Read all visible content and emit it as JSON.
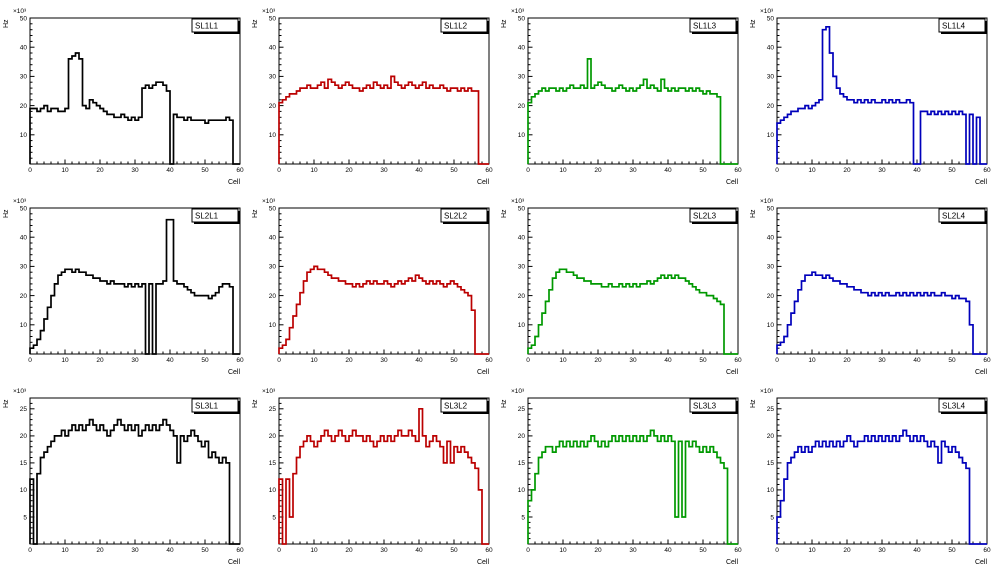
{
  "page": {
    "background": "#ffffff"
  },
  "axis_common": {
    "x_label": "Cell",
    "y_label": "Hz",
    "y_exponent": "×10³"
  },
  "chart_data": [
    {
      "type": "line",
      "style": "step-histogram",
      "title": "SL1L1",
      "color": "#000000",
      "xlabel": "Cell",
      "ylabel": "Hz",
      "y_multiplier": "×10³",
      "xlim": [
        0,
        60
      ],
      "ylim": [
        0,
        50
      ],
      "xticks": [
        0,
        10,
        20,
        30,
        40,
        50,
        60
      ],
      "yticks": [
        10,
        20,
        30,
        40,
        50
      ],
      "values": [
        19,
        19,
        18,
        19,
        20,
        18,
        19,
        19,
        18,
        18,
        19,
        36,
        37,
        38,
        36,
        20,
        19,
        22,
        21,
        20,
        19,
        18,
        17,
        17,
        16,
        16,
        17,
        16,
        15,
        16,
        15,
        16,
        26,
        27,
        26,
        27,
        28,
        28,
        27,
        25,
        0,
        17,
        16,
        16,
        15,
        16,
        15,
        15,
        15,
        15,
        14,
        15,
        15,
        15,
        15,
        15,
        16,
        15,
        0,
        0
      ]
    },
    {
      "type": "line",
      "style": "step-histogram",
      "title": "SL1L2",
      "color": "#bb0000",
      "xlabel": "Cell",
      "ylabel": "Hz",
      "y_multiplier": "×10³",
      "xlim": [
        0,
        60
      ],
      "ylim": [
        0,
        50
      ],
      "xticks": [
        0,
        10,
        20,
        30,
        40,
        50,
        60
      ],
      "yticks": [
        10,
        20,
        30,
        40,
        50
      ],
      "values": [
        21,
        22,
        23,
        24,
        24,
        25,
        26,
        26,
        27,
        26,
        26,
        27,
        28,
        26,
        29,
        28,
        27,
        26,
        27,
        28,
        27,
        26,
        26,
        25,
        26,
        27,
        26,
        28,
        27,
        26,
        27,
        26,
        30,
        28,
        27,
        26,
        27,
        28,
        27,
        26,
        27,
        28,
        26,
        27,
        26,
        26,
        27,
        26,
        25,
        26,
        26,
        25,
        26,
        25,
        26,
        25,
        25,
        0,
        0,
        0
      ]
    },
    {
      "type": "line",
      "style": "step-histogram",
      "title": "SL1L3",
      "color": "#009900",
      "xlabel": "Cell",
      "ylabel": "Hz",
      "y_multiplier": "×10³",
      "xlim": [
        0,
        60
      ],
      "ylim": [
        0,
        50
      ],
      "xticks": [
        0,
        10,
        20,
        30,
        40,
        50,
        60
      ],
      "yticks": [
        10,
        20,
        30,
        40,
        50
      ],
      "values": [
        21,
        23,
        24,
        25,
        26,
        25,
        26,
        26,
        25,
        26,
        25,
        26,
        27,
        26,
        26,
        27,
        26,
        36,
        26,
        27,
        28,
        27,
        26,
        26,
        25,
        26,
        27,
        26,
        25,
        26,
        25,
        26,
        27,
        29,
        26,
        27,
        26,
        25,
        29,
        26,
        25,
        26,
        25,
        26,
        26,
        25,
        26,
        25,
        26,
        25,
        24,
        25,
        24,
        24,
        23,
        0,
        0,
        0,
        0,
        0
      ]
    },
    {
      "type": "line",
      "style": "step-histogram",
      "title": "SL1L4",
      "color": "#0000bb",
      "xlabel": "Cell",
      "ylabel": "Hz",
      "y_multiplier": "×10³",
      "xlim": [
        0,
        60
      ],
      "ylim": [
        0,
        50
      ],
      "xticks": [
        0,
        10,
        20,
        30,
        40,
        50,
        60
      ],
      "yticks": [
        10,
        20,
        30,
        40,
        50
      ],
      "values": [
        14,
        15,
        16,
        17,
        18,
        18,
        19,
        19,
        20,
        19,
        20,
        21,
        22,
        46,
        47,
        38,
        30,
        26,
        24,
        23,
        22,
        22,
        21,
        22,
        21,
        22,
        21,
        22,
        21,
        21,
        22,
        21,
        22,
        21,
        22,
        21,
        21,
        22,
        21,
        0,
        0,
        18,
        18,
        17,
        18,
        17,
        18,
        17,
        18,
        17,
        18,
        17,
        18,
        17,
        0,
        17,
        0,
        16,
        0,
        0
      ]
    },
    {
      "type": "line",
      "style": "step-histogram",
      "title": "SL2L1",
      "color": "#000000",
      "xlabel": "Cell",
      "ylabel": "Hz",
      "y_multiplier": "×10³",
      "xlim": [
        0,
        60
      ],
      "ylim": [
        0,
        50
      ],
      "xticks": [
        0,
        10,
        20,
        30,
        40,
        50,
        60
      ],
      "yticks": [
        10,
        20,
        30,
        40,
        50
      ],
      "values": [
        2,
        3,
        5,
        8,
        12,
        16,
        20,
        24,
        27,
        28,
        29,
        29,
        28,
        29,
        28,
        28,
        27,
        27,
        26,
        26,
        25,
        25,
        24,
        25,
        24,
        24,
        24,
        23,
        24,
        23,
        24,
        23,
        24,
        0,
        24,
        0,
        24,
        24,
        25,
        46,
        46,
        25,
        24,
        24,
        23,
        22,
        21,
        20,
        20,
        20,
        20,
        19,
        20,
        21,
        23,
        24,
        24,
        23,
        0,
        0
      ]
    },
    {
      "type": "line",
      "style": "step-histogram",
      "title": "SL2L2",
      "color": "#bb0000",
      "xlabel": "Cell",
      "ylabel": "Hz",
      "y_multiplier": "×10³",
      "xlim": [
        0,
        60
      ],
      "ylim": [
        0,
        50
      ],
      "xticks": [
        0,
        10,
        20,
        30,
        40,
        50,
        60
      ],
      "yticks": [
        10,
        20,
        30,
        40,
        50
      ],
      "values": [
        2,
        3,
        5,
        9,
        13,
        17,
        21,
        25,
        28,
        29,
        30,
        29,
        29,
        28,
        27,
        26,
        26,
        25,
        25,
        24,
        24,
        23,
        24,
        23,
        24,
        25,
        24,
        25,
        24,
        24,
        25,
        24,
        23,
        24,
        25,
        24,
        25,
        26,
        25,
        27,
        26,
        25,
        24,
        25,
        24,
        25,
        24,
        23,
        24,
        25,
        24,
        23,
        22,
        21,
        20,
        15,
        0,
        0,
        0,
        0
      ]
    },
    {
      "type": "line",
      "style": "step-histogram",
      "title": "SL2L3",
      "color": "#009900",
      "xlabel": "Cell",
      "ylabel": "Hz",
      "y_multiplier": "×10³",
      "xlim": [
        0,
        60
      ],
      "ylim": [
        0,
        50
      ],
      "xticks": [
        0,
        10,
        20,
        30,
        40,
        50,
        60
      ],
      "yticks": [
        10,
        20,
        30,
        40,
        50
      ],
      "values": [
        2,
        3,
        6,
        10,
        14,
        18,
        22,
        26,
        28,
        29,
        29,
        28,
        28,
        27,
        26,
        26,
        25,
        25,
        24,
        24,
        24,
        23,
        23,
        24,
        23,
        23,
        24,
        23,
        24,
        23,
        24,
        23,
        24,
        24,
        25,
        24,
        25,
        26,
        27,
        26,
        27,
        26,
        27,
        26,
        26,
        25,
        24,
        23,
        22,
        21,
        21,
        20,
        20,
        19,
        18,
        17,
        0,
        0,
        0,
        0
      ]
    },
    {
      "type": "line",
      "style": "step-histogram",
      "title": "SL2L4",
      "color": "#0000bb",
      "xlabel": "Cell",
      "ylabel": "Hz",
      "y_multiplier": "×10³",
      "xlim": [
        0,
        60
      ],
      "ylim": [
        0,
        50
      ],
      "xticks": [
        0,
        10,
        20,
        30,
        40,
        50,
        60
      ],
      "yticks": [
        10,
        20,
        30,
        40,
        50
      ],
      "values": [
        3,
        4,
        6,
        10,
        14,
        18,
        22,
        25,
        27,
        27,
        28,
        27,
        27,
        26,
        27,
        26,
        25,
        25,
        24,
        24,
        23,
        23,
        22,
        22,
        21,
        21,
        20,
        21,
        20,
        21,
        20,
        21,
        20,
        20,
        21,
        20,
        21,
        20,
        21,
        20,
        21,
        20,
        21,
        20,
        21,
        20,
        20,
        21,
        20,
        20,
        19,
        20,
        19,
        19,
        18,
        10,
        0,
        0,
        0,
        0
      ]
    },
    {
      "type": "line",
      "style": "step-histogram",
      "title": "SL3L1",
      "color": "#000000",
      "xlabel": "Cell",
      "ylabel": "Hz",
      "y_multiplier": "×10³",
      "xlim": [
        0,
        60
      ],
      "ylim": [
        0,
        27
      ],
      "xticks": [
        0,
        10,
        20,
        30,
        40,
        50,
        60
      ],
      "yticks": [
        5,
        10,
        15,
        20,
        25
      ],
      "values": [
        12,
        0,
        13,
        16,
        17,
        18,
        19,
        20,
        20,
        21,
        20,
        21,
        22,
        21,
        22,
        21,
        22,
        23,
        22,
        21,
        22,
        21,
        20,
        21,
        22,
        23,
        22,
        21,
        22,
        21,
        22,
        20,
        21,
        22,
        21,
        22,
        21,
        22,
        23,
        22,
        21,
        20,
        15,
        20,
        19,
        20,
        21,
        20,
        19,
        18,
        19,
        16,
        17,
        16,
        15,
        16,
        15,
        0,
        0,
        0
      ]
    },
    {
      "type": "line",
      "style": "step-histogram",
      "title": "SL3L2",
      "color": "#bb0000",
      "xlabel": "Cell",
      "ylabel": "Hz",
      "y_multiplier": "×10³",
      "xlim": [
        0,
        60
      ],
      "ylim": [
        0,
        27
      ],
      "xticks": [
        0,
        10,
        20,
        30,
        40,
        50,
        60
      ],
      "yticks": [
        5,
        10,
        15,
        20,
        25
      ],
      "values": [
        12,
        0,
        12,
        5,
        13,
        16,
        18,
        19,
        20,
        19,
        18,
        19,
        20,
        21,
        20,
        19,
        20,
        21,
        20,
        19,
        20,
        21,
        20,
        20,
        19,
        20,
        19,
        18,
        19,
        20,
        19,
        20,
        19,
        20,
        21,
        20,
        20,
        21,
        20,
        19,
        25,
        20,
        18,
        19,
        20,
        19,
        18,
        15,
        19,
        15,
        18,
        17,
        18,
        17,
        16,
        15,
        14,
        10,
        0,
        0
      ]
    },
    {
      "type": "line",
      "style": "step-histogram",
      "title": "SL3L3",
      "color": "#009900",
      "xlabel": "Cell",
      "ylabel": "Hz",
      "y_multiplier": "×10³",
      "xlim": [
        0,
        60
      ],
      "ylim": [
        0,
        27
      ],
      "xticks": [
        0,
        10,
        20,
        30,
        40,
        50,
        60
      ],
      "yticks": [
        5,
        10,
        15,
        20,
        25
      ],
      "values": [
        8,
        10,
        13,
        16,
        17,
        18,
        18,
        17,
        18,
        19,
        18,
        19,
        18,
        19,
        18,
        19,
        18,
        19,
        20,
        19,
        18,
        19,
        18,
        19,
        20,
        19,
        20,
        19,
        20,
        19,
        20,
        19,
        20,
        19,
        20,
        21,
        20,
        19,
        20,
        19,
        20,
        19,
        5,
        19,
        5,
        19,
        18,
        19,
        18,
        17,
        18,
        17,
        18,
        17,
        16,
        15,
        14,
        0,
        0,
        0
      ]
    },
    {
      "type": "line",
      "style": "step-histogram",
      "title": "SL3L4",
      "color": "#0000bb",
      "xlabel": "Cell",
      "ylabel": "Hz",
      "y_multiplier": "×10³",
      "xlim": [
        0,
        60
      ],
      "ylim": [
        0,
        27
      ],
      "xticks": [
        0,
        10,
        20,
        30,
        40,
        50,
        60
      ],
      "yticks": [
        5,
        10,
        15,
        20,
        25
      ],
      "values": [
        5,
        8,
        12,
        15,
        16,
        17,
        18,
        17,
        18,
        17,
        18,
        19,
        18,
        19,
        18,
        19,
        18,
        19,
        18,
        19,
        20,
        19,
        18,
        19,
        19,
        20,
        19,
        20,
        19,
        20,
        19,
        20,
        19,
        20,
        19,
        20,
        21,
        20,
        19,
        20,
        19,
        20,
        19,
        18,
        19,
        18,
        15,
        19,
        18,
        17,
        18,
        17,
        16,
        15,
        14,
        0,
        0,
        0,
        0,
        0
      ]
    }
  ]
}
